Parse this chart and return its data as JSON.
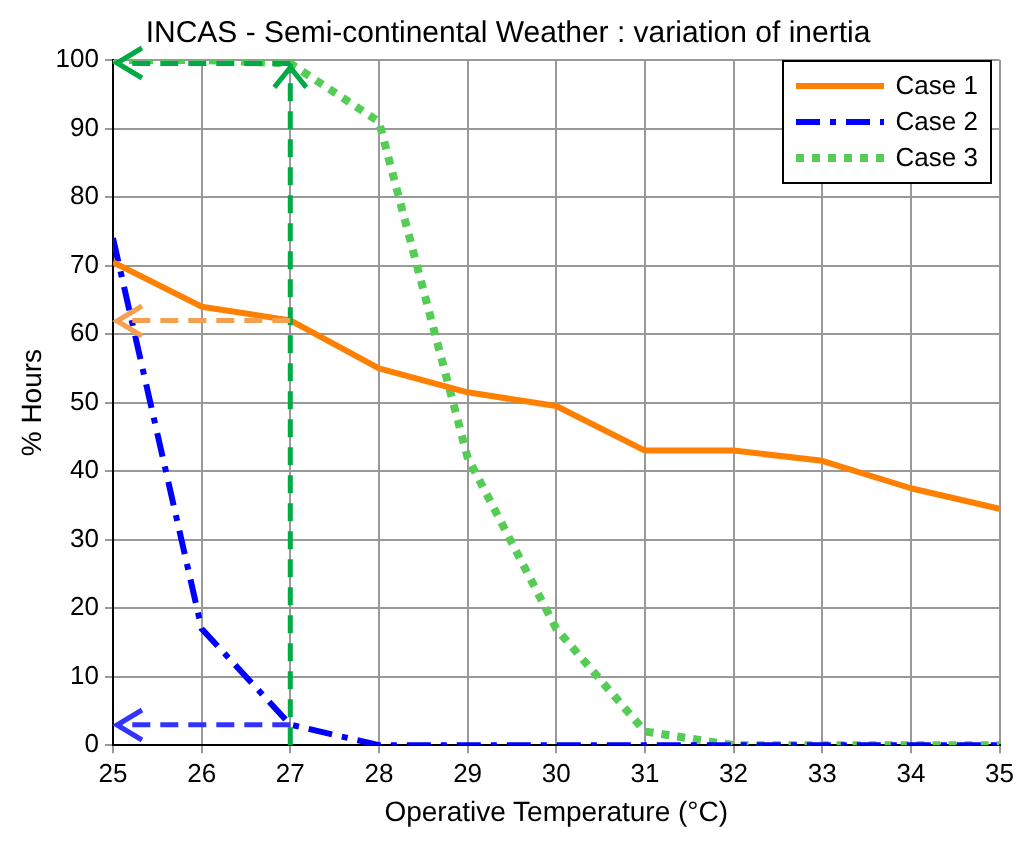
{
  "chart_data": {
    "type": "line",
    "title": "INCAS - Semi-continental Weather : variation of inertia",
    "xlabel": "Operative Temperature (°C)",
    "ylabel": "% Hours",
    "x": [
      25,
      26,
      27,
      28,
      29,
      30,
      31,
      32,
      33,
      34,
      35
    ],
    "series": [
      {
        "name": "Case 1",
        "color": "#ff8000",
        "line_style": "solid",
        "values": [
          70.5,
          64,
          62,
          55,
          51.5,
          49.5,
          43,
          43,
          41.5,
          37.5,
          34.5
        ]
      },
      {
        "name": "Case 2",
        "color": "#0000ff",
        "line_style": "dashed",
        "values": [
          74,
          17,
          3,
          0,
          0,
          0,
          0,
          0,
          0,
          0,
          0
        ]
      },
      {
        "name": "Case 3",
        "color": "#55cc55",
        "line_style": "dotted",
        "values": [
          100,
          100,
          99.5,
          91,
          42,
          17,
          2,
          0,
          0,
          0,
          0
        ]
      }
    ],
    "xlim": [
      25,
      35
    ],
    "xticks": [
      25,
      26,
      27,
      28,
      29,
      30,
      31,
      32,
      33,
      34,
      35
    ],
    "ylim": [
      0,
      100
    ],
    "yticks": [
      0,
      10,
      20,
      30,
      40,
      50,
      60,
      70,
      80,
      90,
      100
    ],
    "ref_lines": [
      {
        "axis": "x",
        "value": 27,
        "color": "#00aa44",
        "line_style": "dashed"
      },
      {
        "axis": "y",
        "value": 99.5,
        "color": "#00aa44",
        "line_style": "dashed"
      },
      {
        "axis": "y",
        "value": 62,
        "color": "#f5a050",
        "line_style": "dashed"
      },
      {
        "axis": "y",
        "value": 3,
        "color": "#3333ff",
        "line_style": "dashed"
      }
    ],
    "grid": true,
    "legend": "top right",
    "marker": "none"
  }
}
